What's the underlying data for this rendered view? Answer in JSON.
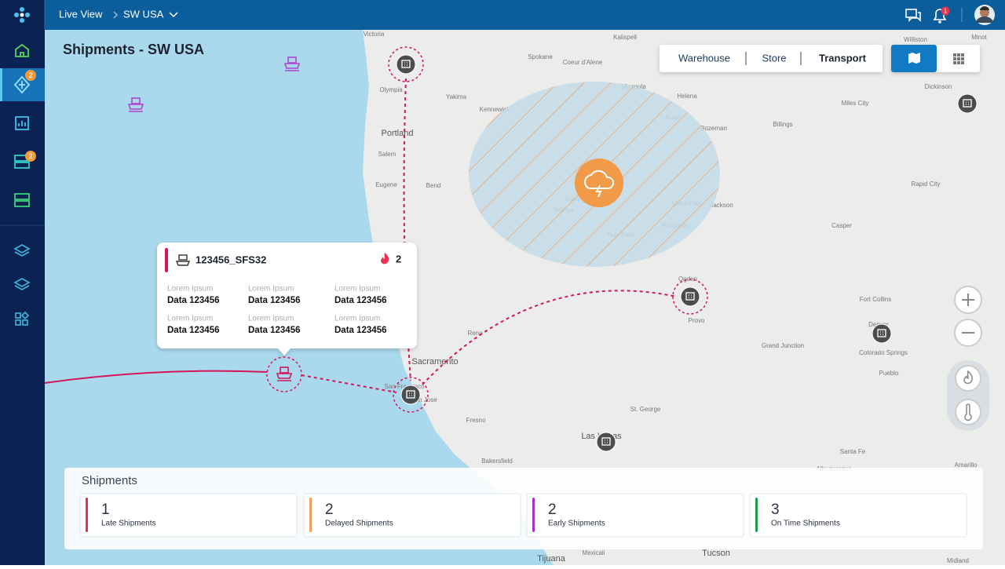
{
  "top_bar": {
    "breadcrumb": [
      "Live View",
      "SW USA"
    ],
    "notification_count": 1
  },
  "sidebar": {
    "badges": [
      2,
      2
    ]
  },
  "page_title": "Shipments - SW USA",
  "view_tabs": [
    "Warehouse",
    "Store",
    "Transport"
  ],
  "map": {
    "labels": [
      "Victoria",
      "Olympia",
      "Spokane",
      "Coeur d'Alene",
      "Kalispell",
      "Yakima",
      "Kennewick",
      "Missoula",
      "Helena",
      "Portland",
      "Salem",
      "Eugene",
      "Bend",
      "Butte",
      "Bozeman",
      "Billings",
      "Miles City",
      "Williston",
      "Minot",
      "Dickinson",
      "Rapid City",
      "Casper",
      "Boise",
      "Nampa",
      "Idaho Falls",
      "Jackson",
      "Pocatello",
      "Twin Falls",
      "Ogden",
      "Provo",
      "Fort Collins",
      "Denver",
      "Colorado Springs",
      "Pueblo",
      "Grand Junction",
      "Reno",
      "Sacramento",
      "San Francisco",
      "San Jose",
      "Fresno",
      "St. George",
      "Las Vegas",
      "Bakersfield",
      "Santa Fe",
      "Albuquerque",
      "Amarillo",
      "Tucson",
      "Tijuana",
      "Mexicali",
      "Midland"
    ]
  },
  "popup": {
    "title": "123456_SFS32",
    "alert_count": 2,
    "fields": [
      {
        "label": "Lorem Ipsum",
        "value": "Data 123456"
      },
      {
        "label": "Lorem Ipsum",
        "value": "Data 123456"
      },
      {
        "label": "Lorem Ipsum",
        "value": "Data 123456"
      },
      {
        "label": "Lorem Ipsum",
        "value": "Data 123456"
      },
      {
        "label": "Lorem Ipsum",
        "value": "Data 123456"
      },
      {
        "label": "Lorem Ipsum",
        "value": "Data 123456"
      }
    ]
  },
  "summary": {
    "title": "Shipments",
    "cards": [
      {
        "count": 1,
        "label": "Late Shipments",
        "color": "#e0344d"
      },
      {
        "count": 2,
        "label": "Delayed Shipments",
        "color": "#f0a058"
      },
      {
        "count": 2,
        "label": "Early Shipments",
        "color": "#a832c8"
      },
      {
        "count": 3,
        "label": "On Time Shipments",
        "color": "#229a4e"
      }
    ]
  }
}
